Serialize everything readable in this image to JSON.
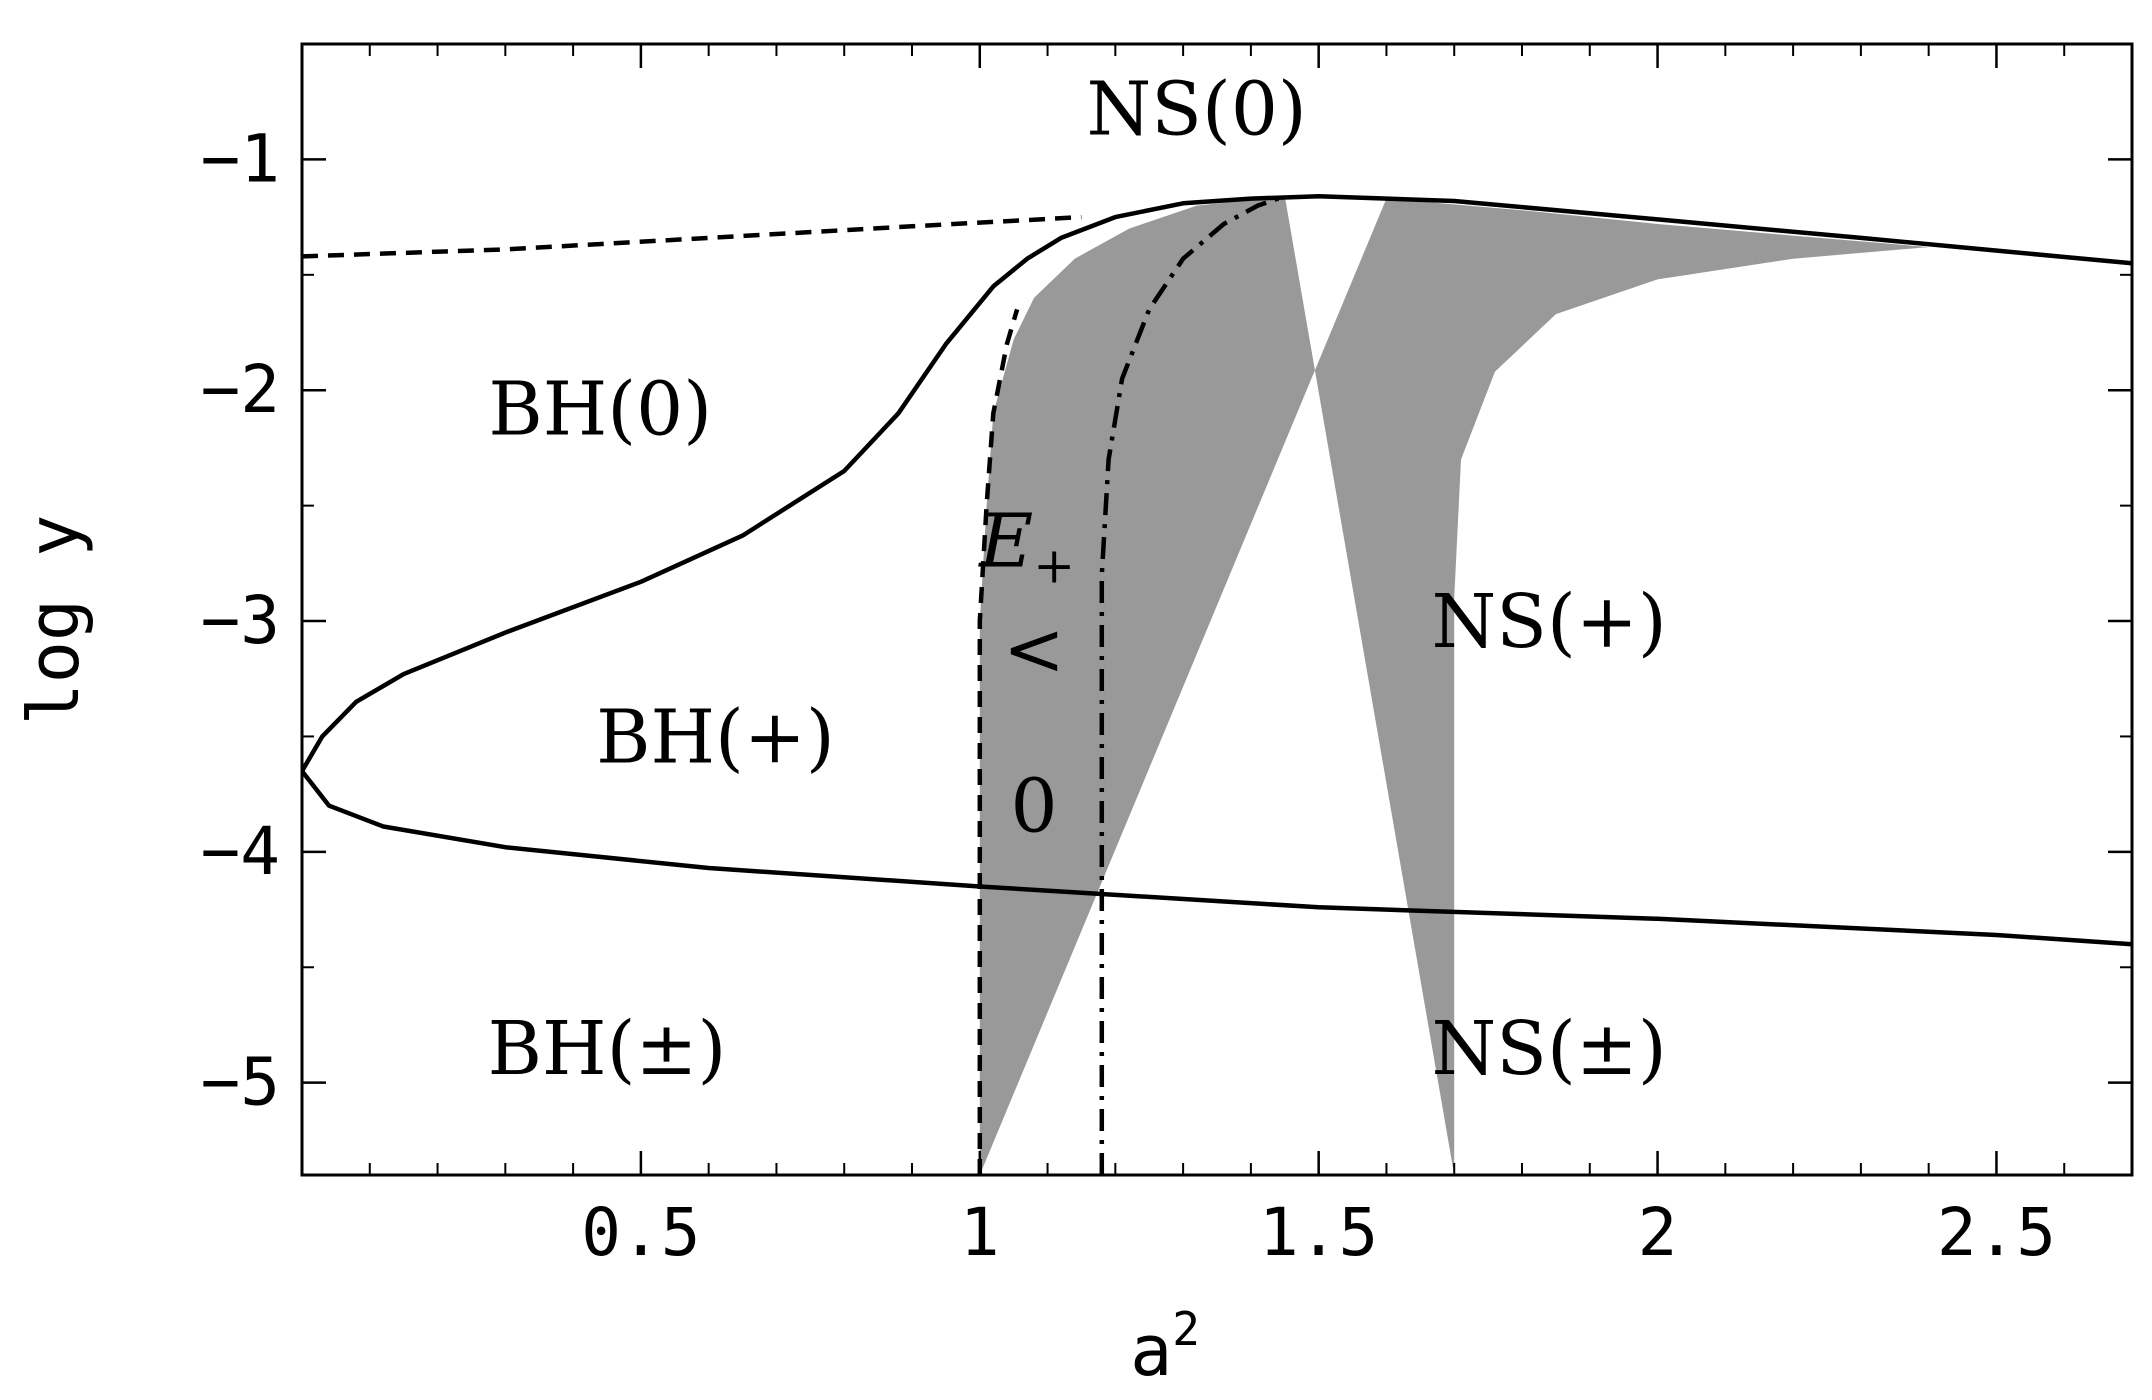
{
  "chart_data": {
    "type": "area",
    "title": "",
    "xlabel": "a",
    "xlabel_sup": "2",
    "ylabel": "log y",
    "xlim": [
      0,
      2.7
    ],
    "ylim": [
      -5.4,
      -0.5
    ],
    "grid": false,
    "x_ticks": [
      {
        "value": 0.5,
        "label": "0.5"
      },
      {
        "value": 1,
        "label": "1"
      },
      {
        "value": 1.5,
        "label": "1.5"
      },
      {
        "value": 2,
        "label": "2"
      },
      {
        "value": 2.5,
        "label": "2.5"
      }
    ],
    "x_minor_ticks": [
      0.1,
      0.2,
      0.3,
      0.4,
      0.6,
      0.7,
      0.8,
      0.9,
      1.1,
      1.2,
      1.3,
      1.4,
      1.6,
      1.7,
      1.8,
      1.9,
      2.1,
      2.2,
      2.3,
      2.4,
      2.6
    ],
    "y_ticks": [
      {
        "value": -1,
        "label": "−1"
      },
      {
        "value": -2,
        "label": "−2"
      },
      {
        "value": -3,
        "label": "−3"
      },
      {
        "value": -4,
        "label": "−4"
      },
      {
        "value": -5,
        "label": "−5"
      }
    ],
    "y_minor_ticks": [
      -1.5,
      -2.5,
      -3.5,
      -4.5
    ],
    "shaded_region": {
      "color": "#999999",
      "left_boundary": [
        [
          1.0,
          -5.4
        ],
        [
          1.0,
          -4.5
        ],
        [
          1.0,
          -3.6
        ],
        [
          1.0,
          -3.0
        ],
        [
          1.01,
          -2.5
        ],
        [
          1.02,
          -2.1
        ],
        [
          1.05,
          -1.78
        ],
        [
          1.08,
          -1.6
        ],
        [
          1.14,
          -1.43
        ],
        [
          1.22,
          -1.3
        ],
        [
          1.32,
          -1.2
        ],
        [
          1.45,
          -1.16
        ]
      ],
      "upper_boundary": [
        [
          1.45,
          -1.16
        ],
        [
          1.6,
          -1.17
        ],
        [
          1.8,
          -1.22
        ],
        [
          2.0,
          -1.28
        ],
        [
          2.2,
          -1.33
        ],
        [
          2.4,
          -1.38
        ]
      ],
      "right_boundary": [
        [
          2.4,
          -1.38
        ],
        [
          2.2,
          -1.43
        ],
        [
          2.0,
          -1.52
        ],
        [
          1.85,
          -1.67
        ],
        [
          1.76,
          -1.92
        ],
        [
          1.71,
          -2.3
        ],
        [
          1.7,
          -2.9
        ],
        [
          1.7,
          -3.6
        ],
        [
          1.7,
          -4.6
        ],
        [
          1.7,
          -5.4
        ]
      ]
    },
    "series": [
      {
        "style": "solid",
        "points": [
          [
            0.0,
            -3.65
          ],
          [
            0.03,
            -3.5
          ],
          [
            0.08,
            -3.35
          ],
          [
            0.15,
            -3.23
          ],
          [
            0.3,
            -3.05
          ],
          [
            0.5,
            -2.83
          ],
          [
            0.65,
            -2.63
          ],
          [
            0.8,
            -2.35
          ],
          [
            0.88,
            -2.1
          ],
          [
            0.95,
            -1.8
          ],
          [
            1.02,
            -1.55
          ],
          [
            1.07,
            -1.43
          ],
          [
            1.12,
            -1.34
          ],
          [
            1.2,
            -1.25
          ],
          [
            1.3,
            -1.19
          ],
          [
            1.4,
            -1.17
          ],
          [
            1.5,
            -1.16
          ],
          [
            1.7,
            -1.18
          ],
          [
            2.0,
            -1.26
          ],
          [
            2.3,
            -1.34
          ],
          [
            2.7,
            -1.45
          ]
        ]
      },
      {
        "style": "solid",
        "points": [
          [
            0.0,
            -3.65
          ],
          [
            0.04,
            -3.8
          ],
          [
            0.12,
            -3.89
          ],
          [
            0.3,
            -3.98
          ],
          [
            0.6,
            -4.07
          ],
          [
            1.0,
            -4.15
          ],
          [
            1.5,
            -4.24
          ],
          [
            2.0,
            -4.29
          ],
          [
            2.5,
            -4.36
          ],
          [
            2.7,
            -4.4
          ]
        ]
      },
      {
        "style": "dashed",
        "points": [
          [
            0.0,
            -1.42
          ],
          [
            0.3,
            -1.39
          ],
          [
            0.6,
            -1.34
          ],
          [
            0.9,
            -1.29
          ],
          [
            1.15,
            -1.25
          ]
        ]
      },
      {
        "style": "dashed",
        "points": [
          [
            1.0,
            -5.4
          ],
          [
            1.0,
            -4.5
          ],
          [
            1.0,
            -3.6
          ],
          [
            1.0,
            -3.0
          ],
          [
            1.01,
            -2.5
          ],
          [
            1.02,
            -2.1
          ],
          [
            1.04,
            -1.8
          ],
          [
            1.055,
            -1.65
          ]
        ]
      },
      {
        "style": "dashdot",
        "points": [
          [
            1.18,
            -5.4
          ],
          [
            1.18,
            -4.5
          ],
          [
            1.18,
            -3.6
          ],
          [
            1.18,
            -2.8
          ],
          [
            1.19,
            -2.3
          ],
          [
            1.21,
            -1.95
          ],
          [
            1.25,
            -1.65
          ],
          [
            1.3,
            -1.43
          ],
          [
            1.36,
            -1.28
          ],
          [
            1.41,
            -1.2
          ],
          [
            1.45,
            -1.16
          ]
        ]
      }
    ],
    "annotations": [
      {
        "id": "ns0",
        "text": "NS(0)",
        "x": 1.32,
        "y": -0.78
      },
      {
        "id": "bh0",
        "text": "BH(0)",
        "x": 0.44,
        "y": -2.08
      },
      {
        "id": "bhplus",
        "text": "BH(+)",
        "x": 0.61,
        "y": -3.5
      },
      {
        "id": "nsplus",
        "text": "NS(+)",
        "x": 1.84,
        "y": -3.0
      },
      {
        "id": "bhpm",
        "text": "BH(±)",
        "x": 0.45,
        "y": -4.85
      },
      {
        "id": "nspm",
        "text": "NS(±)",
        "x": 1.84,
        "y": -4.85
      },
      {
        "id": "eplus",
        "text": "E",
        "sub": "+",
        "x": 1.07,
        "y": -2.65,
        "italic": true
      },
      {
        "id": "lt",
        "text": "<",
        "x": 1.08,
        "y": -3.12
      },
      {
        "id": "zero",
        "text": "0",
        "x": 1.08,
        "y": -3.8
      }
    ]
  }
}
